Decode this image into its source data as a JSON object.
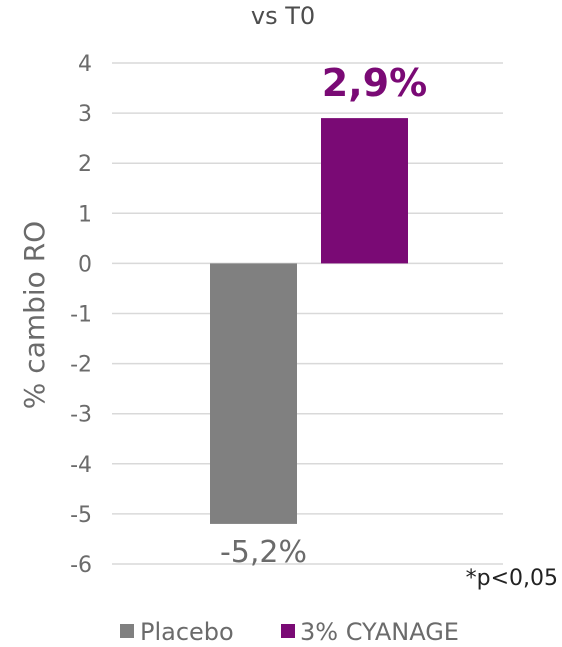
{
  "chart_data": {
    "type": "bar",
    "title": "vs T0",
    "ylabel": "% cambio RO",
    "xlabel": "",
    "ylim": [
      -6,
      4
    ],
    "yticks": [
      4,
      3,
      2,
      1,
      0,
      -1,
      -2,
      -3,
      -4,
      -5,
      -6
    ],
    "grid": true,
    "legend_position": "bottom",
    "series": [
      {
        "name": "Placebo",
        "value": -5.2,
        "label": "-5,2%",
        "color": "#808080"
      },
      {
        "name": "3% CYANAGE",
        "value": 2.9,
        "label": "2,9%",
        "color": "#7a0a75"
      }
    ],
    "annotation": "*p<0,05"
  }
}
